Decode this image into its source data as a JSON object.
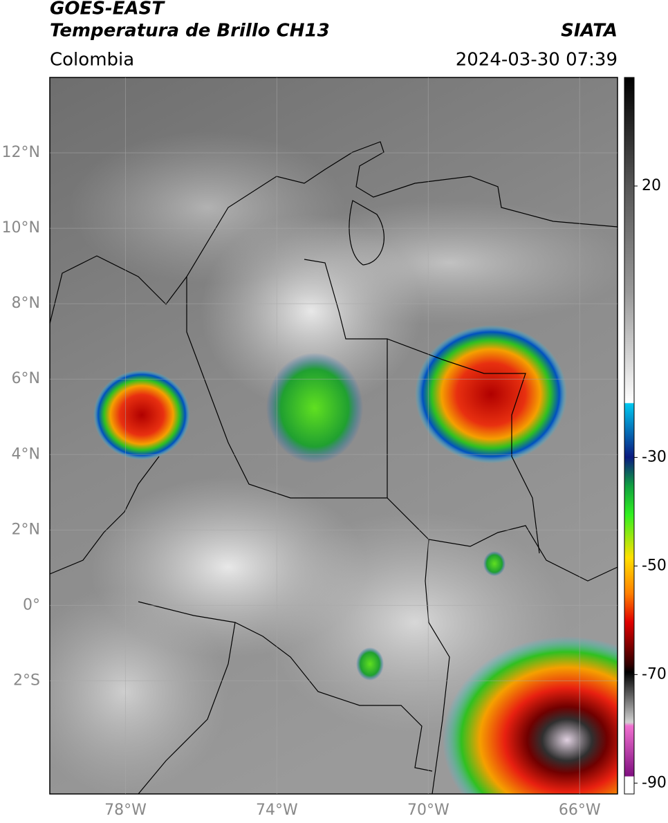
{
  "header": {
    "satellite": "GOES-EAST",
    "product": "Temperatura de Brillo CH13",
    "source": "SIATA",
    "region": "Colombia",
    "datetime": "2024-03-30 07:39"
  },
  "map": {
    "lon_range": [
      -80,
      -65
    ],
    "lat_range": [
      -5,
      14
    ],
    "grid": true,
    "lat_ticks": [
      {
        "value": 12,
        "label": "12°N"
      },
      {
        "value": 10,
        "label": "10°N"
      },
      {
        "value": 8,
        "label": "8°N"
      },
      {
        "value": 6,
        "label": "6°N"
      },
      {
        "value": 4,
        "label": "4°N"
      },
      {
        "value": 2,
        "label": "2°N"
      },
      {
        "value": 0,
        "label": "0°"
      },
      {
        "value": -2,
        "label": "2°S"
      }
    ],
    "lon_ticks": [
      {
        "value": -78,
        "label": "78°W"
      },
      {
        "value": -74,
        "label": "74°W"
      },
      {
        "value": -70,
        "label": "70°W"
      },
      {
        "value": -66,
        "label": "66°W"
      }
    ]
  },
  "colorbar": {
    "range": [
      -92,
      40
    ],
    "ticks": [
      20,
      -30,
      -50,
      -70,
      -90
    ]
  }
}
